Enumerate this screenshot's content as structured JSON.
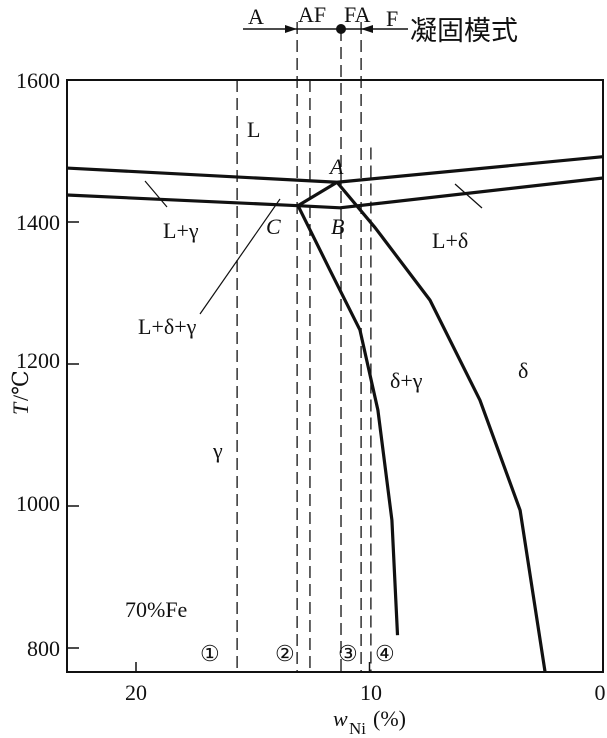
{
  "chart_data": {
    "type": "line",
    "xlabel_main": "w",
    "xlabel_sub": "Ni",
    "xlabel_unit": "(%)",
    "ylabel_main": "T",
    "ylabel_unit": "/℃",
    "xlim": [
      23,
      0
    ],
    "ylim": [
      765,
      1600
    ],
    "xticks": [
      20,
      10,
      0
    ],
    "yticks": [
      800,
      1000,
      1200,
      1400,
      1600
    ],
    "grid": false,
    "composition_note": "70%Fe",
    "solidification_modes": {
      "title": "凝固模式",
      "labels": [
        "A",
        "AF",
        "FA",
        "F"
      ]
    },
    "boundaries": [
      {
        "points": [
          [
            22.96,
            1476
          ],
          [
            11.39,
            1456
          ],
          [
            0,
            1492
          ]
        ]
      },
      {
        "points": [
          [
            22.96,
            1438
          ],
          [
            13.06,
            1423
          ]
        ]
      },
      {
        "points": [
          [
            13.06,
            1423
          ],
          [
            11.39,
            1456
          ]
        ]
      },
      {
        "points": [
          [
            13.06,
            1423
          ],
          [
            11.26,
            1420
          ],
          [
            0,
            1462
          ]
        ]
      },
      {
        "points": [
          [
            11.39,
            1456
          ],
          [
            9.76,
            1392
          ],
          [
            7.41,
            1290
          ],
          [
            5.27,
            1149
          ],
          [
            3.55,
            994
          ],
          [
            2.48,
            766
          ]
        ]
      },
      {
        "points": [
          [
            13.06,
            1423
          ],
          [
            11.69,
            1332
          ],
          [
            10.41,
            1248
          ],
          [
            9.64,
            1135
          ],
          [
            9.04,
            980
          ],
          [
            8.8,
            818
          ]
        ]
      }
    ],
    "alloy_lines": [
      15.67,
      12.55,
      11.22,
      9.94
    ],
    "mode_boundaries": [
      13.1,
      10.36
    ],
    "alloy_labels": [
      "①",
      "②",
      "③",
      "④"
    ],
    "phase_labels": {
      "L": "L",
      "L_gamma": "L+γ",
      "L_delta": "L+δ",
      "L_delta_gamma": "L+δ+γ",
      "delta_gamma": "δ+γ",
      "delta": "δ",
      "gamma": "γ"
    },
    "points": {
      "A": "A",
      "B": "B",
      "C": "C"
    }
  }
}
